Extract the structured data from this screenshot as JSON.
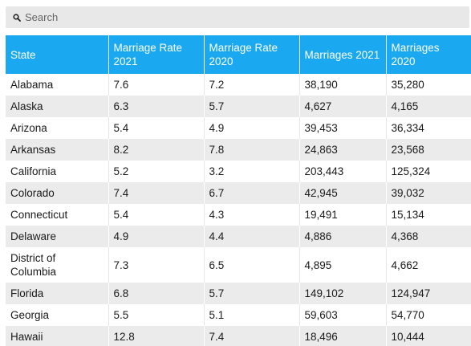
{
  "search": {
    "placeholder": "Search"
  },
  "table": {
    "headers": [
      "State",
      "Marriage Rate 2021",
      "Marriage Rate 2020",
      "Marriages 2021",
      "Marriages 2020"
    ],
    "rows": [
      [
        "Alabama",
        "7.6",
        "7.2",
        "38,190",
        "35,280"
      ],
      [
        "Alaska",
        "6.3",
        "5.7",
        "4,627",
        "4,165"
      ],
      [
        "Arizona",
        "5.4",
        "4.9",
        "39,453",
        "36,334"
      ],
      [
        "Arkansas",
        "8.2",
        "7.8",
        "24,863",
        "23,568"
      ],
      [
        "California",
        "5.2",
        "3.2",
        "203,443",
        "125,324"
      ],
      [
        "Colorado",
        "7.4",
        "6.7",
        "42,945",
        "39,032"
      ],
      [
        "Connecticut",
        "5.4",
        "4.3",
        "19,491",
        "15,134"
      ],
      [
        "Delaware",
        "4.9",
        "4.4",
        "4,886",
        "4,368"
      ],
      [
        "District of Columbia",
        "7.3",
        "6.5",
        "4,895",
        "4,662"
      ],
      [
        "Florida",
        "6.8",
        "5.7",
        "149,102",
        "124,947"
      ],
      [
        "Georgia",
        "5.5",
        "5.1",
        "59,603",
        "54,770"
      ],
      [
        "Hawaii",
        "12.8",
        "7.4",
        "18,496",
        "10,444"
      ]
    ]
  }
}
